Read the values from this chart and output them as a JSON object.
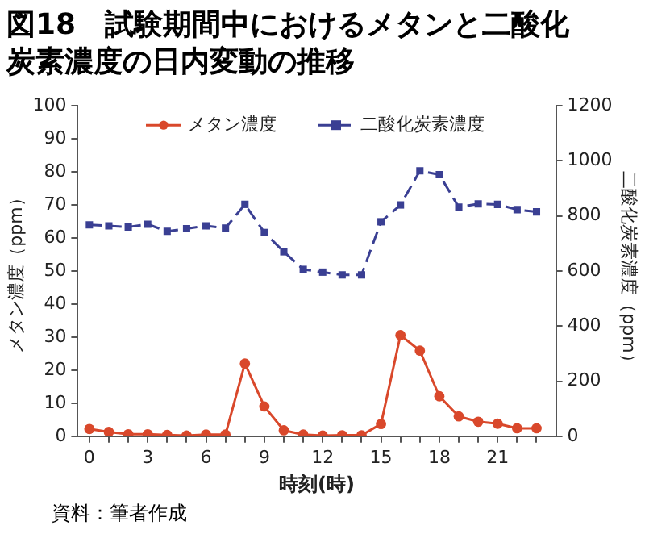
{
  "chart_data": {
    "type": "line",
    "title": "図18　試験期間中におけるメタンと二酸化炭素濃度の日内変動の推移",
    "xlabel": "時刻(時)",
    "ylabel": "メタン濃度（ppm）",
    "y2label": "二酸化炭素濃度（ppm）",
    "annotations": [
      "資料：筆者作成"
    ],
    "x": [
      0,
      1,
      2,
      3,
      4,
      5,
      6,
      7,
      8,
      9,
      10,
      11,
      12,
      13,
      14,
      15,
      16,
      17,
      18,
      19,
      20,
      21,
      22,
      23
    ],
    "series": [
      {
        "name": "メタン濃度",
        "color": "#d9482b",
        "marker": "circle",
        "line_style": "solid",
        "values": [
          2.2,
          1.3,
          0.6,
          0.6,
          0.4,
          0.2,
          0.5,
          0.5,
          22,
          9,
          1.8,
          0.5,
          0.2,
          0.3,
          0.3,
          3.7,
          30.6,
          25.9,
          12.1,
          6,
          4.4,
          3.8,
          2.4,
          2.4
        ]
      },
      {
        "name": "二酸化炭素濃度",
        "color": "#3a3f93",
        "marker": "square",
        "line_style": "dashed",
        "axis": "y2",
        "values": [
          768,
          764,
          760,
          770,
          744,
          754,
          764,
          756,
          842,
          740,
          670,
          606,
          596,
          586,
          586,
          779,
          840,
          964,
          950,
          832,
          844,
          842,
          823,
          815
        ]
      }
    ],
    "xlim": [
      -0.6,
      24
    ],
    "xticks": [
      0,
      {
        "value": 1,
        "label": null
      },
      {
        "value": 2,
        "label": null
      },
      3,
      {
        "value": 4,
        "label": null
      },
      {
        "value": 5,
        "label": null
      },
      6,
      {
        "value": 7,
        "label": null
      },
      {
        "value": 8,
        "label": null
      },
      9,
      {
        "value": 10,
        "label": null
      },
      {
        "value": 11,
        "label": null
      },
      12,
      {
        "value": 13,
        "label": null
      },
      {
        "value": 14,
        "label": null
      },
      15,
      {
        "value": 16,
        "label": null
      },
      {
        "value": 17,
        "label": null
      },
      18,
      {
        "value": 19,
        "label": null
      },
      {
        "value": 20,
        "label": null
      },
      21,
      {
        "value": 22,
        "label": null
      },
      {
        "value": 23,
        "label": null
      }
    ],
    "ylim": [
      0,
      100
    ],
    "yticks": [
      0,
      10,
      20,
      30,
      40,
      50,
      60,
      70,
      80,
      90,
      100
    ],
    "y2lim": [
      0,
      1200
    ],
    "y2ticks": [
      0,
      200,
      400,
      600,
      800,
      1000,
      1200
    ],
    "grid": false,
    "legend": "top"
  }
}
